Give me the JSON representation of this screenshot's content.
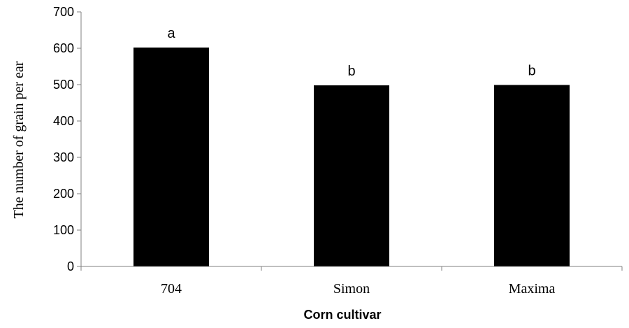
{
  "chart_data": {
    "type": "bar",
    "title": "",
    "xlabel": "Corn cultivar",
    "ylabel": "The number of grain per ear",
    "categories": [
      "704",
      "Simon",
      "Maxima"
    ],
    "values": [
      602,
      498,
      499
    ],
    "bar_labels": [
      "a",
      "b",
      "b"
    ],
    "ylim": [
      0,
      700
    ],
    "yticks": [
      0,
      100,
      200,
      300,
      400,
      500,
      600,
      700
    ],
    "grid": false,
    "legend": "none",
    "bar_color": "#000000"
  }
}
